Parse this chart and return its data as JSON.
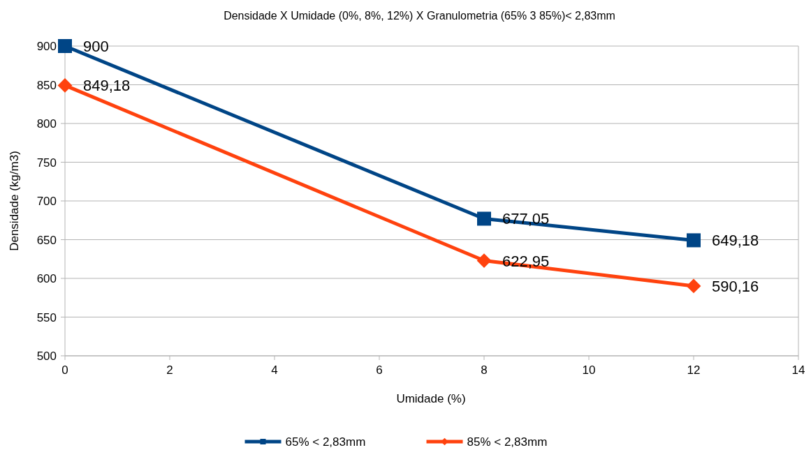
{
  "chart_data": {
    "type": "line",
    "title": "Densidade X Umidade  (0%, 8%, 12%) X Granulometria  (65% 3 85%)< 2,83mm",
    "xlabel": "Umidade  (%)",
    "ylabel": "Densidade  (kg/m3)",
    "x": [
      0,
      8,
      12
    ],
    "series": [
      {
        "name": "65% < 2,83mm",
        "color": "#004586",
        "marker": "square",
        "values": [
          900,
          677.05,
          649.18
        ],
        "value_labels": [
          "900",
          "677,05",
          "649,18"
        ]
      },
      {
        "name": "85% < 2,83mm",
        "color": "#ff420e",
        "marker": "diamond",
        "values": [
          849.18,
          622.95,
          590.16
        ],
        "value_labels": [
          "849,18",
          "622,95",
          "590,16"
        ]
      }
    ],
    "xlim": [
      0,
      14
    ],
    "xticks": [
      0,
      2,
      4,
      6,
      8,
      10,
      12,
      14
    ],
    "ylim": [
      500,
      900
    ],
    "yticks": [
      500,
      550,
      600,
      650,
      700,
      750,
      800,
      850,
      900
    ],
    "grid": "y",
    "legend": "bottom"
  }
}
